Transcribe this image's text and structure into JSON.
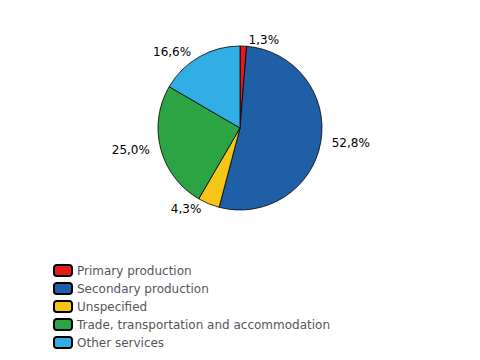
{
  "chart_data": {
    "type": "pie",
    "categories": [
      "Primary production",
      "Secondary production",
      "Unspecified",
      "Trade, transportation and accommodation",
      "Other services"
    ],
    "values": [
      1.3,
      52.8,
      4.3,
      25.0,
      16.6
    ],
    "value_labels": [
      "1,3%",
      "52,8%",
      "4,3%",
      "25,0%",
      "16,6%"
    ],
    "colors": [
      "#e8191a",
      "#1f5fa6",
      "#f5c518",
      "#2da444",
      "#31aee3"
    ],
    "data_labels": true,
    "legend": "lower left"
  }
}
